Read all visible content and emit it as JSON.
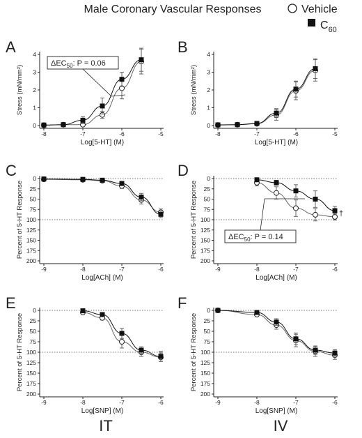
{
  "title": "Male Coronary Vascular Responses",
  "legend": [
    {
      "label": "Vehicle",
      "marker": "open-circle",
      "subscript": ""
    },
    {
      "label": "C",
      "marker": "filled-square",
      "subscript": "60"
    }
  ],
  "groups": [
    "IT",
    "IV"
  ],
  "chart_data": [
    {
      "panel": "A",
      "type": "line",
      "xlabel": "Log[5-HT] (M)",
      "ylabel": "Stress (mN/mm²)",
      "xlim": [
        -8,
        -5
      ],
      "ylim": [
        0,
        4
      ],
      "xticks": [
        "-8",
        "-7",
        "-6",
        "-5"
      ],
      "yticks": [
        "0",
        "1",
        "2",
        "3",
        "4"
      ],
      "reference_lines": [],
      "series": [
        {
          "name": "Vehicle",
          "x": [
            -8,
            -7.5,
            -7,
            -6.5,
            -6,
            -5.5
          ],
          "y": [
            0.02,
            0.05,
            0.05,
            0.6,
            2.1,
            3.6
          ],
          "err": [
            0.05,
            0.05,
            0.1,
            0.2,
            0.6,
            0.7
          ]
        },
        {
          "name": "C60",
          "x": [
            -8,
            -7.5,
            -7,
            -6.5,
            -6,
            -5.5
          ],
          "y": [
            0.03,
            0.05,
            0.3,
            1.1,
            2.6,
            3.7
          ],
          "err": [
            0.05,
            0.05,
            0.2,
            0.45,
            0.4,
            0.65
          ]
        }
      ],
      "annotation": {
        "text": "ΔEC",
        "sub": "50",
        "rest": ": P = 0.06"
      }
    },
    {
      "panel": "B",
      "type": "line",
      "xlabel": "Log[5-HT] (M)",
      "ylabel": "Stress (mN/mm²)",
      "xlim": [
        -8,
        -5
      ],
      "ylim": [
        0,
        4
      ],
      "xticks": [
        "-8",
        "-7",
        "-6",
        "-5"
      ],
      "yticks": [
        "0",
        "1",
        "2",
        "3",
        "4"
      ],
      "reference_lines": [],
      "series": [
        {
          "name": "Vehicle",
          "x": [
            -8,
            -7.5,
            -7,
            -6.5,
            -6,
            -5.5
          ],
          "y": [
            0.03,
            0.05,
            0.1,
            0.6,
            1.95,
            3.1
          ],
          "err": [
            0.05,
            0.05,
            0.05,
            0.3,
            0.5,
            0.6
          ]
        },
        {
          "name": "C60",
          "x": [
            -8,
            -7.5,
            -7,
            -6.5,
            -6,
            -5.5
          ],
          "y": [
            0.04,
            0.05,
            0.12,
            0.7,
            2.05,
            3.2
          ],
          "err": [
            0.05,
            0.05,
            0.05,
            0.25,
            0.45,
            0.55
          ]
        }
      ],
      "annotation": null
    },
    {
      "panel": "C",
      "type": "line",
      "xlabel": "Log[ACh] (M)",
      "ylabel": "Percent of 5-HT Response",
      "xlim": [
        -9,
        -6
      ],
      "ylim": [
        200,
        0
      ],
      "xticks": [
        "-9",
        "-8",
        "-7",
        "-6"
      ],
      "yticks": [
        "0",
        "25",
        "50",
        "75",
        "100",
        "125",
        "150",
        "175",
        "200"
      ],
      "reference_lines": [
        0,
        100
      ],
      "series": [
        {
          "name": "Vehicle",
          "x": [
            -9,
            -8,
            -7.5,
            -7,
            -6.5,
            -6
          ],
          "y": [
            2,
            3,
            5,
            18,
            52,
            82
          ],
          "err": [
            2,
            3,
            4,
            6,
            10,
            8
          ]
        },
        {
          "name": "C60",
          "x": [
            -9,
            -8,
            -7.5,
            -7,
            -6.5,
            -6
          ],
          "y": [
            1,
            2,
            4,
            12,
            45,
            87
          ],
          "err": [
            2,
            3,
            3,
            5,
            9,
            8
          ]
        }
      ],
      "annotation": null
    },
    {
      "panel": "D",
      "type": "line",
      "xlabel": "Log[ACh] (M)",
      "ylabel": "Percent of 5-HT Response",
      "xlim": [
        -9,
        -6
      ],
      "ylim": [
        200,
        0
      ],
      "xticks": [
        "-9",
        "-8",
        "-7",
        "-6"
      ],
      "yticks": [
        "0",
        "25",
        "50",
        "75",
        "100",
        "125",
        "150",
        "175",
        "200"
      ],
      "reference_lines": [
        0,
        100
      ],
      "series": [
        {
          "name": "Vehicle",
          "x": [
            -8,
            -7.5,
            -7,
            -6.5,
            -6
          ],
          "y": [
            10,
            35,
            72,
            88,
            93
          ],
          "err": [
            8,
            15,
            20,
            15,
            8
          ]
        },
        {
          "name": "C60",
          "x": [
            -8,
            -7.5,
            -7,
            -6.5,
            -6
          ],
          "y": [
            3,
            10,
            30,
            50,
            78
          ],
          "err": [
            3,
            6,
            15,
            20,
            10
          ]
        }
      ],
      "annotation": {
        "text": "ΔEC",
        "sub": "50",
        "rest": ": P = 0.14"
      },
      "marker_text": "†"
    },
    {
      "panel": "E",
      "type": "line",
      "xlabel": "Log[SNP] (M)",
      "ylabel": "Percent of 5-HT Response",
      "xlim": [
        -9,
        -6
      ],
      "ylim": [
        200,
        0
      ],
      "xticks": [
        "-9",
        "-8",
        "-7",
        "-6"
      ],
      "yticks": [
        "0",
        "25",
        "50",
        "75",
        "100",
        "125",
        "150",
        "175",
        "200"
      ],
      "reference_lines": [
        0,
        100
      ],
      "series": [
        {
          "name": "Vehicle",
          "x": [
            -8,
            -7.5,
            -7,
            -6.5,
            -6
          ],
          "y": [
            5,
            18,
            75,
            100,
            112
          ],
          "err": [
            3,
            5,
            15,
            10,
            10
          ]
        },
        {
          "name": "C60",
          "x": [
            -8,
            -7.5,
            -7,
            -6.5,
            -6
          ],
          "y": [
            1,
            10,
            55,
            95,
            110
          ],
          "err": [
            2,
            4,
            12,
            8,
            12
          ]
        }
      ],
      "annotation": null
    },
    {
      "panel": "F",
      "type": "line",
      "xlabel": "Log[SNP] (M)",
      "ylabel": "Percent of 5-HT Response",
      "xlim": [
        -9,
        -6
      ],
      "ylim": [
        200,
        0
      ],
      "xticks": [
        "-9",
        "-8",
        "-7",
        "-6"
      ],
      "yticks": [
        "0",
        "25",
        "50",
        "75",
        "100",
        "125",
        "150",
        "175",
        "200"
      ],
      "reference_lines": [
        0,
        100
      ],
      "series": [
        {
          "name": "Vehicle",
          "x": [
            -9,
            -8,
            -7.5,
            -7,
            -6.5,
            -6
          ],
          "y": [
            0,
            10,
            35,
            72,
            98,
            107
          ],
          "err": [
            2,
            4,
            10,
            15,
            12,
            10
          ]
        },
        {
          "name": "C60",
          "x": [
            -9,
            -8,
            -7.5,
            -7,
            -6.5,
            -6
          ],
          "y": [
            0,
            5,
            28,
            68,
            95,
            102
          ],
          "err": [
            2,
            4,
            8,
            14,
            10,
            8
          ]
        }
      ],
      "annotation": null
    }
  ]
}
